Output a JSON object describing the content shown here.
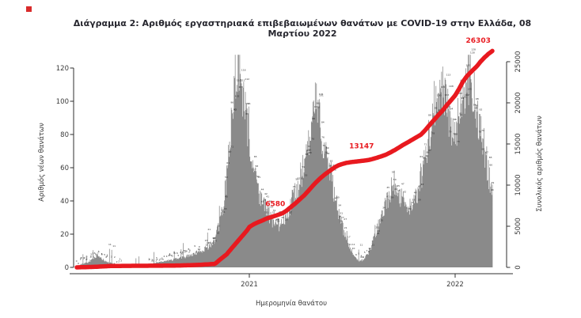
{
  "title": "Διάγραμμα 2: Αριθμός εργαστηριακά επιβεβαιωμένων θανάτων με COVID-19 στην Ελλάδα, 08 Μαρτίου 2022",
  "top_left_marker": {
    "color": "#d92b2b"
  },
  "colors": {
    "bars": "#8a8a8a",
    "line": "#e8191f",
    "axis": "#2f2f2f",
    "tick_label": "#3a3a3a",
    "annotation": "#e8191f",
    "speck": "#2b2b2b",
    "title": "#26262e"
  },
  "chart_data": {
    "type": "bar",
    "line_overlay": true,
    "title": "Διάγραμμα 2: Αριθμός εργαστηριακά επιβεβαιωμένων θανάτων με COVID-19 στην Ελλάδα, 08 Μαρτίου 2022",
    "xlabel": "Ημερομηνία θανάτου",
    "ylabel_left": "Αριθμός νέων θανάτων",
    "ylabel_right": "Συνολικός αριθμός θανάτων",
    "x_day_count": 737,
    "x_ticks": [
      {
        "label": "2021",
        "day": 306
      },
      {
        "label": "2022",
        "day": 671
      }
    ],
    "y_left": {
      "min": 0,
      "max": 120,
      "ticks": [
        0,
        20,
        40,
        60,
        80,
        100,
        120
      ]
    },
    "y_right": {
      "min": 0,
      "max": 25000,
      "ticks": [
        0,
        5000,
        10000,
        15000,
        20000,
        25000
      ]
    },
    "grid": false,
    "series": [
      {
        "name": "Αριθμός νέων θανάτων",
        "type": "bar",
        "axis": "left",
        "anchors_day_value": [
          [
            0,
            0
          ],
          [
            8,
            2
          ],
          [
            20,
            3
          ],
          [
            30,
            5
          ],
          [
            36,
            7
          ],
          [
            45,
            5
          ],
          [
            55,
            3
          ],
          [
            70,
            2
          ],
          [
            85,
            1
          ],
          [
            100,
            1
          ],
          [
            115,
            1
          ],
          [
            130,
            2
          ],
          [
            145,
            3
          ],
          [
            160,
            4
          ],
          [
            175,
            5
          ],
          [
            190,
            6
          ],
          [
            205,
            8
          ],
          [
            215,
            9
          ],
          [
            225,
            11
          ],
          [
            235,
            13
          ],
          [
            243,
            16
          ],
          [
            250,
            22
          ],
          [
            256,
            30
          ],
          [
            262,
            42
          ],
          [
            267,
            58
          ],
          [
            271,
            75
          ],
          [
            275,
            92
          ],
          [
            279,
            108
          ],
          [
            282,
            121
          ],
          [
            285,
            123
          ],
          [
            289,
            116
          ],
          [
            293,
            105
          ],
          [
            298,
            94
          ],
          [
            303,
            82
          ],
          [
            308,
            70
          ],
          [
            313,
            60
          ],
          [
            318,
            52
          ],
          [
            324,
            45
          ],
          [
            330,
            40
          ],
          [
            337,
            34
          ],
          [
            344,
            29
          ],
          [
            351,
            26
          ],
          [
            358,
            25
          ],
          [
            365,
            28
          ],
          [
            372,
            32
          ],
          [
            379,
            38
          ],
          [
            386,
            44
          ],
          [
            393,
            50
          ],
          [
            400,
            58
          ],
          [
            407,
            66
          ],
          [
            412,
            74
          ],
          [
            417,
            84
          ],
          [
            421,
            95
          ],
          [
            425,
            98
          ],
          [
            429,
            90
          ],
          [
            434,
            82
          ],
          [
            439,
            74
          ],
          [
            444,
            66
          ],
          [
            449,
            58
          ],
          [
            454,
            50
          ],
          [
            459,
            42
          ],
          [
            464,
            34
          ],
          [
            469,
            27
          ],
          [
            474,
            21
          ],
          [
            479,
            16
          ],
          [
            484,
            12
          ],
          [
            489,
            9
          ],
          [
            494,
            6
          ],
          [
            499,
            4
          ],
          [
            504,
            4
          ],
          [
            509,
            5
          ],
          [
            514,
            7
          ],
          [
            519,
            10
          ],
          [
            524,
            14
          ],
          [
            529,
            19
          ],
          [
            534,
            24
          ],
          [
            539,
            29
          ],
          [
            544,
            34
          ],
          [
            549,
            39
          ],
          [
            554,
            44
          ],
          [
            559,
            49
          ],
          [
            564,
            51
          ],
          [
            569,
            47
          ],
          [
            574,
            43
          ],
          [
            579,
            40
          ],
          [
            584,
            38
          ],
          [
            589,
            37
          ],
          [
            594,
            38
          ],
          [
            599,
            40
          ],
          [
            604,
            44
          ],
          [
            609,
            50
          ],
          [
            614,
            58
          ],
          [
            619,
            68
          ],
          [
            624,
            78
          ],
          [
            629,
            88
          ],
          [
            634,
            97
          ],
          [
            639,
            105
          ],
          [
            644,
            110
          ],
          [
            649,
            106
          ],
          [
            654,
            99
          ],
          [
            659,
            92
          ],
          [
            664,
            84
          ],
          [
            668,
            76
          ],
          [
            672,
            80
          ],
          [
            676,
            88
          ],
          [
            680,
            96
          ],
          [
            684,
            103
          ],
          [
            688,
            108
          ],
          [
            692,
            112
          ],
          [
            696,
            115
          ],
          [
            699,
            126
          ],
          [
            701,
            110
          ],
          [
            704,
            104
          ],
          [
            708,
            97
          ],
          [
            712,
            90
          ],
          [
            716,
            84
          ],
          [
            720,
            77
          ],
          [
            724,
            69
          ],
          [
            728,
            62
          ],
          [
            731,
            56
          ],
          [
            734,
            50
          ],
          [
            737,
            44
          ]
        ]
      },
      {
        "name": "Συνολικός αριθμός θανάτων",
        "type": "line",
        "axis": "right",
        "color": "#e8191f",
        "anchors_day_value": [
          [
            0,
            0
          ],
          [
            30,
            60
          ],
          [
            60,
            165
          ],
          [
            90,
            185
          ],
          [
            120,
            195
          ],
          [
            150,
            205
          ],
          [
            185,
            235
          ],
          [
            215,
            300
          ],
          [
            245,
            420
          ],
          [
            255,
            1000
          ],
          [
            266,
            1600
          ],
          [
            272,
            2100
          ],
          [
            282,
            2900
          ],
          [
            292,
            3700
          ],
          [
            302,
            4500
          ],
          [
            306,
            4900
          ],
          [
            314,
            5250
          ],
          [
            322,
            5500
          ],
          [
            330,
            5720
          ],
          [
            337,
            5950
          ],
          [
            351,
            6250
          ],
          [
            365,
            6580
          ],
          [
            372,
            6900
          ],
          [
            380,
            7350
          ],
          [
            388,
            7800
          ],
          [
            396,
            8300
          ],
          [
            404,
            8800
          ],
          [
            412,
            9400
          ],
          [
            419,
            9950
          ],
          [
            426,
            10450
          ],
          [
            433,
            10900
          ],
          [
            440,
            11300
          ],
          [
            448,
            11700
          ],
          [
            457,
            12150
          ],
          [
            464,
            12400
          ],
          [
            470,
            12550
          ],
          [
            478,
            12700
          ],
          [
            487,
            12800
          ],
          [
            495,
            12860
          ],
          [
            500,
            12900
          ],
          [
            510,
            12980
          ],
          [
            518,
            13060
          ],
          [
            525,
            13180
          ],
          [
            532,
            13320
          ],
          [
            540,
            13500
          ],
          [
            549,
            13720
          ],
          [
            557,
            14000
          ],
          [
            565,
            14300
          ],
          [
            572,
            14600
          ],
          [
            579,
            14900
          ],
          [
            587,
            15200
          ],
          [
            595,
            15520
          ],
          [
            602,
            15800
          ],
          [
            610,
            16120
          ],
          [
            617,
            16600
          ],
          [
            625,
            17250
          ],
          [
            632,
            17800
          ],
          [
            640,
            18420
          ],
          [
            648,
            19000
          ],
          [
            655,
            19620
          ],
          [
            663,
            20250
          ],
          [
            671,
            20900
          ],
          [
            678,
            21700
          ],
          [
            685,
            22600
          ],
          [
            692,
            23250
          ],
          [
            702,
            23950
          ],
          [
            709,
            24400
          ],
          [
            716,
            25000
          ],
          [
            723,
            25500
          ],
          [
            730,
            25950
          ],
          [
            737,
            26303
          ]
        ]
      }
    ],
    "annotations": [
      {
        "text": "6580",
        "day": 352,
        "value": 7450,
        "behind_line": true
      },
      {
        "text": "13147",
        "day": 505,
        "value": 14450,
        "behind_line": false
      },
      {
        "text": "26303",
        "day": 712,
        "value": 27300,
        "behind_line": false
      }
    ]
  }
}
